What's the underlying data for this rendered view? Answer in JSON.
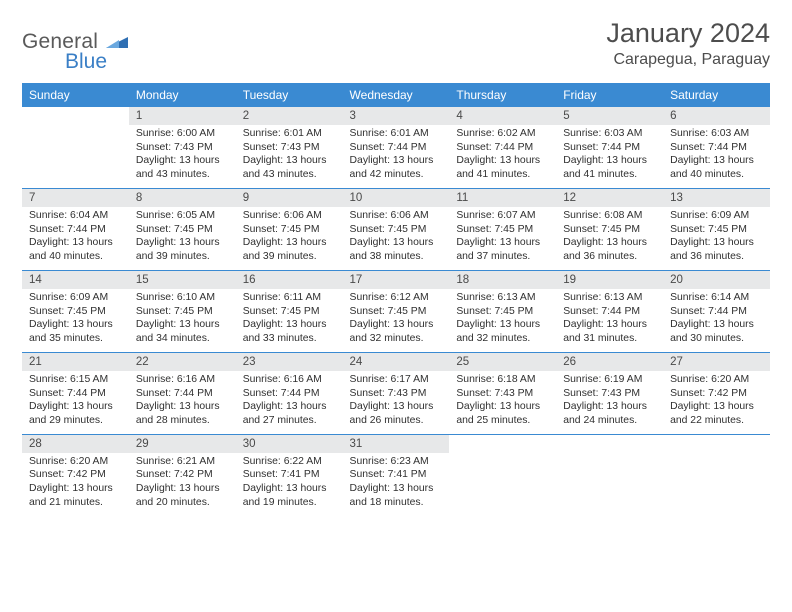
{
  "logo": {
    "general": "General",
    "blue": "Blue"
  },
  "title": "January 2024",
  "location": "Carapegua, Paraguay",
  "colors": {
    "header_bg": "#3a8ad2",
    "header_fg": "#ffffff",
    "daynum_bg": "#e7e8e9",
    "rule": "#3a8ad2",
    "text": "#303030",
    "title_text": "#4d4d4d",
    "logo_gray": "#5a5a5a",
    "logo_blue": "#3a7fc6"
  },
  "weekdays": [
    "Sunday",
    "Monday",
    "Tuesday",
    "Wednesday",
    "Thursday",
    "Friday",
    "Saturday"
  ],
  "weeks": [
    [
      {
        "n": "",
        "l": []
      },
      {
        "n": "1",
        "l": [
          "Sunrise: 6:00 AM",
          "Sunset: 7:43 PM",
          "Daylight: 13 hours",
          "and 43 minutes."
        ]
      },
      {
        "n": "2",
        "l": [
          "Sunrise: 6:01 AM",
          "Sunset: 7:43 PM",
          "Daylight: 13 hours",
          "and 43 minutes."
        ]
      },
      {
        "n": "3",
        "l": [
          "Sunrise: 6:01 AM",
          "Sunset: 7:44 PM",
          "Daylight: 13 hours",
          "and 42 minutes."
        ]
      },
      {
        "n": "4",
        "l": [
          "Sunrise: 6:02 AM",
          "Sunset: 7:44 PM",
          "Daylight: 13 hours",
          "and 41 minutes."
        ]
      },
      {
        "n": "5",
        "l": [
          "Sunrise: 6:03 AM",
          "Sunset: 7:44 PM",
          "Daylight: 13 hours",
          "and 41 minutes."
        ]
      },
      {
        "n": "6",
        "l": [
          "Sunrise: 6:03 AM",
          "Sunset: 7:44 PM",
          "Daylight: 13 hours",
          "and 40 minutes."
        ]
      }
    ],
    [
      {
        "n": "7",
        "l": [
          "Sunrise: 6:04 AM",
          "Sunset: 7:44 PM",
          "Daylight: 13 hours",
          "and 40 minutes."
        ]
      },
      {
        "n": "8",
        "l": [
          "Sunrise: 6:05 AM",
          "Sunset: 7:45 PM",
          "Daylight: 13 hours",
          "and 39 minutes."
        ]
      },
      {
        "n": "9",
        "l": [
          "Sunrise: 6:06 AM",
          "Sunset: 7:45 PM",
          "Daylight: 13 hours",
          "and 39 minutes."
        ]
      },
      {
        "n": "10",
        "l": [
          "Sunrise: 6:06 AM",
          "Sunset: 7:45 PM",
          "Daylight: 13 hours",
          "and 38 minutes."
        ]
      },
      {
        "n": "11",
        "l": [
          "Sunrise: 6:07 AM",
          "Sunset: 7:45 PM",
          "Daylight: 13 hours",
          "and 37 minutes."
        ]
      },
      {
        "n": "12",
        "l": [
          "Sunrise: 6:08 AM",
          "Sunset: 7:45 PM",
          "Daylight: 13 hours",
          "and 36 minutes."
        ]
      },
      {
        "n": "13",
        "l": [
          "Sunrise: 6:09 AM",
          "Sunset: 7:45 PM",
          "Daylight: 13 hours",
          "and 36 minutes."
        ]
      }
    ],
    [
      {
        "n": "14",
        "l": [
          "Sunrise: 6:09 AM",
          "Sunset: 7:45 PM",
          "Daylight: 13 hours",
          "and 35 minutes."
        ]
      },
      {
        "n": "15",
        "l": [
          "Sunrise: 6:10 AM",
          "Sunset: 7:45 PM",
          "Daylight: 13 hours",
          "and 34 minutes."
        ]
      },
      {
        "n": "16",
        "l": [
          "Sunrise: 6:11 AM",
          "Sunset: 7:45 PM",
          "Daylight: 13 hours",
          "and 33 minutes."
        ]
      },
      {
        "n": "17",
        "l": [
          "Sunrise: 6:12 AM",
          "Sunset: 7:45 PM",
          "Daylight: 13 hours",
          "and 32 minutes."
        ]
      },
      {
        "n": "18",
        "l": [
          "Sunrise: 6:13 AM",
          "Sunset: 7:45 PM",
          "Daylight: 13 hours",
          "and 32 minutes."
        ]
      },
      {
        "n": "19",
        "l": [
          "Sunrise: 6:13 AM",
          "Sunset: 7:44 PM",
          "Daylight: 13 hours",
          "and 31 minutes."
        ]
      },
      {
        "n": "20",
        "l": [
          "Sunrise: 6:14 AM",
          "Sunset: 7:44 PM",
          "Daylight: 13 hours",
          "and 30 minutes."
        ]
      }
    ],
    [
      {
        "n": "21",
        "l": [
          "Sunrise: 6:15 AM",
          "Sunset: 7:44 PM",
          "Daylight: 13 hours",
          "and 29 minutes."
        ]
      },
      {
        "n": "22",
        "l": [
          "Sunrise: 6:16 AM",
          "Sunset: 7:44 PM",
          "Daylight: 13 hours",
          "and 28 minutes."
        ]
      },
      {
        "n": "23",
        "l": [
          "Sunrise: 6:16 AM",
          "Sunset: 7:44 PM",
          "Daylight: 13 hours",
          "and 27 minutes."
        ]
      },
      {
        "n": "24",
        "l": [
          "Sunrise: 6:17 AM",
          "Sunset: 7:43 PM",
          "Daylight: 13 hours",
          "and 26 minutes."
        ]
      },
      {
        "n": "25",
        "l": [
          "Sunrise: 6:18 AM",
          "Sunset: 7:43 PM",
          "Daylight: 13 hours",
          "and 25 minutes."
        ]
      },
      {
        "n": "26",
        "l": [
          "Sunrise: 6:19 AM",
          "Sunset: 7:43 PM",
          "Daylight: 13 hours",
          "and 24 minutes."
        ]
      },
      {
        "n": "27",
        "l": [
          "Sunrise: 6:20 AM",
          "Sunset: 7:42 PM",
          "Daylight: 13 hours",
          "and 22 minutes."
        ]
      }
    ],
    [
      {
        "n": "28",
        "l": [
          "Sunrise: 6:20 AM",
          "Sunset: 7:42 PM",
          "Daylight: 13 hours",
          "and 21 minutes."
        ]
      },
      {
        "n": "29",
        "l": [
          "Sunrise: 6:21 AM",
          "Sunset: 7:42 PM",
          "Daylight: 13 hours",
          "and 20 minutes."
        ]
      },
      {
        "n": "30",
        "l": [
          "Sunrise: 6:22 AM",
          "Sunset: 7:41 PM",
          "Daylight: 13 hours",
          "and 19 minutes."
        ]
      },
      {
        "n": "31",
        "l": [
          "Sunrise: 6:23 AM",
          "Sunset: 7:41 PM",
          "Daylight: 13 hours",
          "and 18 minutes."
        ]
      },
      {
        "n": "",
        "l": []
      },
      {
        "n": "",
        "l": []
      },
      {
        "n": "",
        "l": []
      }
    ]
  ]
}
